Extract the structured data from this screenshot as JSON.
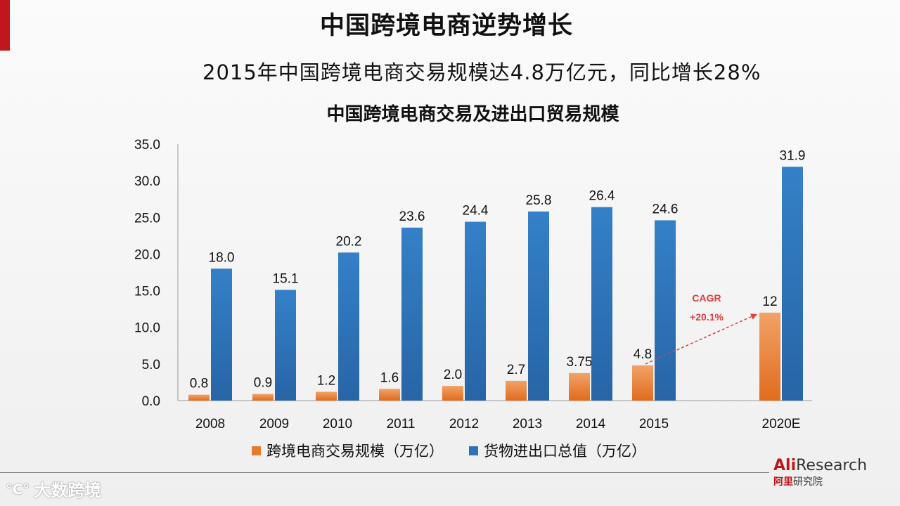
{
  "header": {
    "main_title": "中国跨境电商逆势增长",
    "subtitle": "2015年中国跨境电商交易规模达4.8万亿元，同比增长28%"
  },
  "colors": {
    "accent": "#c0161c",
    "orange": "#e57b2c",
    "blue": "#2f73b7"
  },
  "chart_data": {
    "type": "bar",
    "title": "中国跨境电商交易及进出口贸易规模",
    "categories": [
      "2008",
      "2009",
      "2010",
      "2011",
      "2012",
      "2013",
      "2014",
      "2015",
      "2020E"
    ],
    "series": [
      {
        "name": "跨境电商交易规模（万亿）",
        "values": [
          0.8,
          0.9,
          1.2,
          1.6,
          2.0,
          2.7,
          3.75,
          4.8,
          12
        ],
        "labels": [
          "0.8",
          "0.9",
          "1.2",
          "1.6",
          "2.0",
          "2.7",
          "3.75",
          "4.8",
          "12"
        ]
      },
      {
        "name": "货物进出口总值（万亿）",
        "values": [
          18.0,
          15.1,
          20.2,
          23.6,
          24.4,
          25.8,
          26.4,
          24.6,
          31.9
        ],
        "labels": [
          "18.0",
          "15.1",
          "20.2",
          "23.6",
          "24.4",
          "25.8",
          "26.4",
          "24.6",
          "31.9"
        ]
      }
    ],
    "ylim": [
      0,
      35
    ],
    "yticks": [
      "0.0",
      "5.0",
      "10.0",
      "15.0",
      "20.0",
      "25.0",
      "30.0",
      "35.0"
    ],
    "annotation": {
      "label": "CAGR",
      "value": "+20.1%",
      "from_category": "2015",
      "to_category": "2020E"
    },
    "legend_position": "bottom"
  },
  "legend": {
    "item1": "跨境电商交易规模（万亿）",
    "item2": "货物进出口总值（万亿）"
  },
  "brand": {
    "ali": "Ali",
    "research": "Research",
    "cn_red": "阿里",
    "cn_gray": "研究院"
  },
  "watermark": {
    "logo": "℃°",
    "text": "大数跨境"
  }
}
